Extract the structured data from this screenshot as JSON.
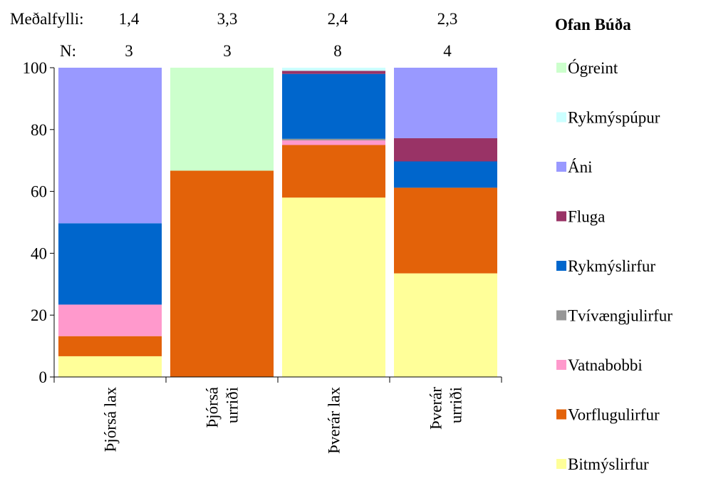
{
  "chart_data": {
    "type": "bar",
    "stacked": true,
    "legend_title": "Ofan Búða",
    "categories": [
      [
        "Þjórsá lax"
      ],
      [
        "Þjórsá",
        "urriði"
      ],
      [
        "Þverár lax"
      ],
      [
        "Þverár",
        "urriði"
      ]
    ],
    "mean_fill_label": "Meðalfylli:",
    "n_label": "N:",
    "mean_fill_values": [
      "1,4",
      "3,3",
      "2,4",
      "2,3"
    ],
    "n_values": [
      "3",
      "3",
      "8",
      "4"
    ],
    "ylim": [
      0,
      100
    ],
    "yticks": [
      0,
      20,
      40,
      60,
      80,
      100
    ],
    "series": [
      {
        "name": "Bitmýslirfur",
        "color": "#FFFF99",
        "values": [
          6.7,
          0,
          58,
          33.5
        ]
      },
      {
        "name": "Vorflugulirfur",
        "color": "#E36209",
        "values": [
          6.5,
          66.7,
          17,
          27.7
        ]
      },
      {
        "name": "Vatnabobbi",
        "color": "#FF99CC",
        "values": [
          10.2,
          0,
          1.5,
          0
        ]
      },
      {
        "name": "Tvívængjulirfur",
        "color": "#969696",
        "values": [
          0,
          0,
          0.5,
          0
        ]
      },
      {
        "name": "Rykmýslirfur",
        "color": "#0066CC",
        "values": [
          26.3,
          0,
          21,
          8.5
        ]
      },
      {
        "name": "Fluga",
        "color": "#993366",
        "values": [
          0,
          0,
          1,
          7.5
        ]
      },
      {
        "name": "Áni",
        "color": "#9999FF",
        "values": [
          50.3,
          0,
          0,
          22.8
        ]
      },
      {
        "name": "Rykmýspúpur",
        "color": "#CCFFFF",
        "values": [
          0,
          0,
          1,
          0
        ]
      },
      {
        "name": "Ógreint",
        "color": "#CCFFCC",
        "values": [
          0,
          33.3,
          0,
          0
        ]
      }
    ]
  }
}
